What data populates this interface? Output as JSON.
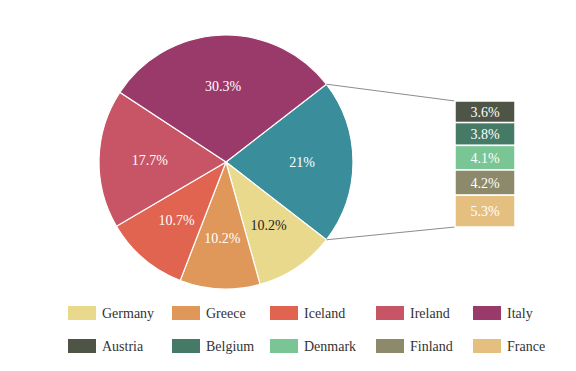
{
  "chart_data": [
    {
      "type": "pie",
      "categories": [
        null,
        "Germany",
        "Greece",
        "Iceland",
        "Ireland",
        "Italy"
      ],
      "values": [
        21,
        10.2,
        10.2,
        10.7,
        17.7,
        30.3
      ],
      "value_labels": [
        "21%",
        "10.2%",
        "10.2%",
        "10.7%",
        "17.7%",
        "30.3%"
      ],
      "colors": [
        "#3a8e9c",
        "#e8d98c",
        "#e0975a",
        "#e0644f",
        "#c85565",
        "#9a3a6a"
      ],
      "data_labels": true,
      "legend": "bottom"
    },
    {
      "type": "bar",
      "stacked": true,
      "categories": [
        "Austria",
        "Belgium",
        "Denmark",
        "Finland",
        "France"
      ],
      "values": [
        3.6,
        3.8,
        4.1,
        4.2,
        5.3
      ],
      "value_labels": [
        "3.6%",
        "3.8%",
        "4.1%",
        "4.2%",
        "5.3%"
      ],
      "colors": [
        "#4e5547",
        "#457a67",
        "#79c694",
        "#8c8a6a",
        "#e5bf80"
      ],
      "data_labels": true,
      "legend": "bottom"
    }
  ]
}
